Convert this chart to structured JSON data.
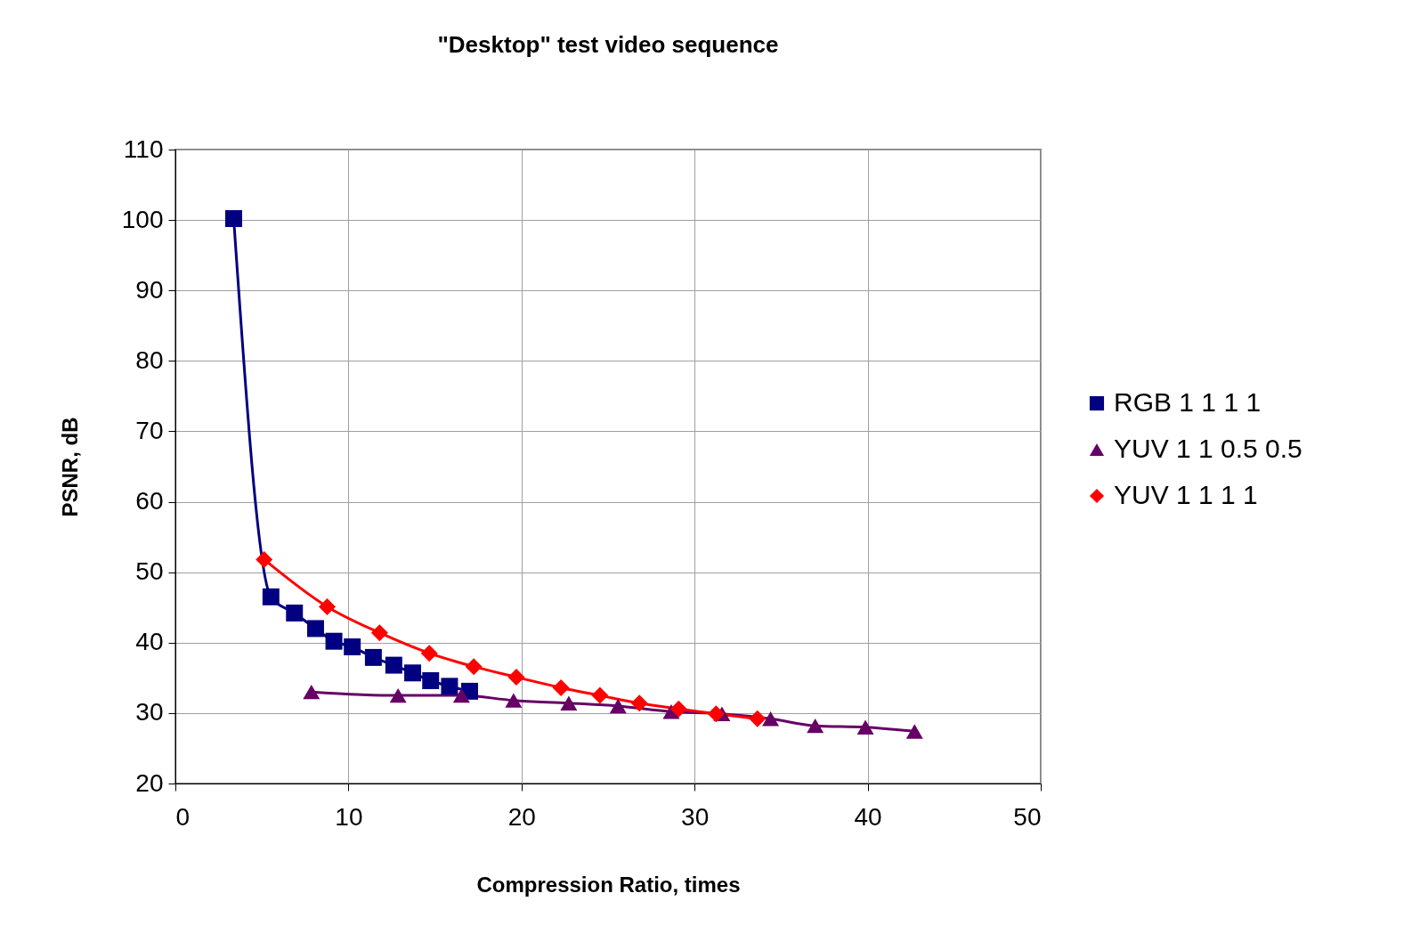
{
  "chart_data": {
    "type": "line",
    "title": "\"Desktop\" test video sequence",
    "xlabel": "Compression Ratio, times",
    "ylabel": "PSNR, dB",
    "xlim": [
      0,
      50
    ],
    "xticks": [
      0,
      10,
      20,
      30,
      40,
      50
    ],
    "ylim": [
      20,
      110
    ],
    "yticks": [
      20,
      30,
      40,
      50,
      60,
      70,
      80,
      90,
      100,
      110
    ],
    "grid": true,
    "legend": "right",
    "line_style": "solid",
    "series": [
      {
        "name": "RGB 1 1 1 1",
        "color": "#000080",
        "marker": "square",
        "x": [
          3.37,
          5.52,
          6.88,
          8.1,
          9.16,
          10.22,
          11.44,
          12.62,
          13.71,
          14.75,
          15.84,
          17.0
        ],
        "values": [
          100.2,
          46.5,
          44.2,
          42.0,
          40.2,
          39.4,
          37.9,
          36.8,
          35.7,
          34.6,
          33.8,
          33.1
        ]
      },
      {
        "name": "YUV 1 1 0.5 0.5",
        "color": "#660066",
        "marker": "triangle",
        "x": [
          7.86,
          12.87,
          16.53,
          19.54,
          22.73,
          25.58,
          28.65,
          31.58,
          34.39,
          36.97,
          39.87,
          42.71
        ],
        "values": [
          33.0,
          32.5,
          32.5,
          31.8,
          31.4,
          31.0,
          30.2,
          29.9,
          29.2,
          28.2,
          28.0,
          27.4
        ]
      },
      {
        "name": "YUV 1 1 1 1",
        "color": "#ff0000",
        "marker": "diamond",
        "x": [
          5.13,
          8.77,
          11.8,
          14.67,
          17.24,
          19.7,
          22.28,
          24.53,
          26.81,
          29.08,
          31.24,
          33.63
        ],
        "values": [
          51.8,
          45.1,
          41.4,
          38.5,
          36.6,
          35.1,
          33.6,
          32.5,
          31.4,
          30.6,
          29.9,
          29.2
        ]
      }
    ]
  }
}
